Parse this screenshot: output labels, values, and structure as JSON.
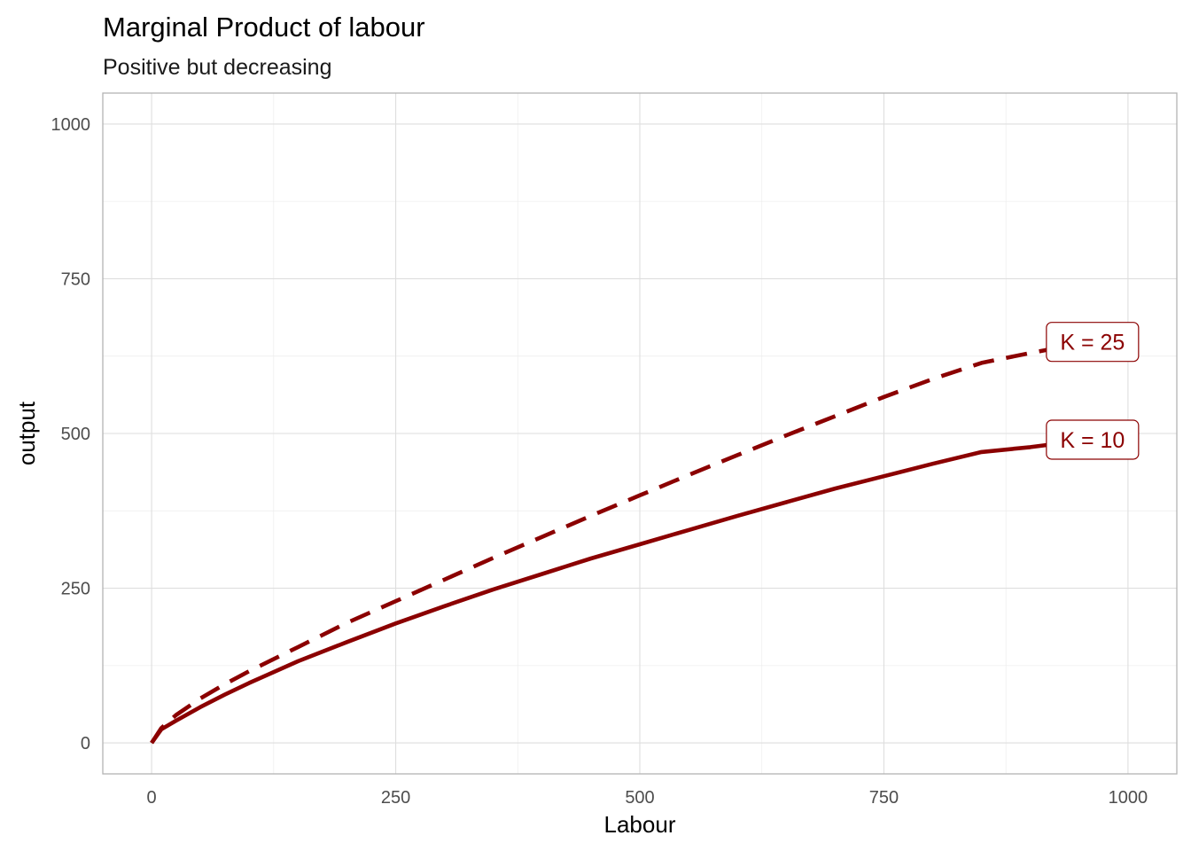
{
  "chart_data": {
    "type": "line",
    "title": "Marginal Product of labour",
    "subtitle": "Positive but decreasing",
    "xlabel": "Labour",
    "ylabel": "output",
    "xlim": [
      -50,
      1050
    ],
    "ylim": [
      -50,
      1050
    ],
    "x_ticks": [
      0,
      250,
      500,
      750,
      1000
    ],
    "y_ticks": [
      0,
      250,
      500,
      750,
      1000
    ],
    "x_minor_ticks": [
      125,
      375,
      625,
      875
    ],
    "y_minor_ticks": [
      125,
      375,
      625,
      875
    ],
    "grid": true,
    "legend": "none",
    "color": "#8b0000",
    "series": [
      {
        "label": "K = 25",
        "linestyle": "dashed",
        "x": [
          0,
          10,
          25,
          50,
          75,
          100,
          150,
          200,
          250,
          300,
          350,
          400,
          450,
          500,
          550,
          600,
          650,
          700,
          750,
          800,
          850,
          900,
          950,
          960
        ],
        "y": [
          0,
          24,
          45,
          72,
          95,
          116,
          155,
          194,
          229,
          264,
          299,
          333,
          367,
          400,
          433,
          465,
          497,
          528,
          559,
          588,
          614,
          630,
          645,
          648
        ]
      },
      {
        "label": "K = 10",
        "linestyle": "solid",
        "x": [
          0,
          10,
          25,
          50,
          75,
          100,
          150,
          200,
          250,
          300,
          350,
          400,
          450,
          500,
          550,
          600,
          650,
          700,
          750,
          800,
          850,
          900,
          950,
          960
        ],
        "y": [
          0,
          22,
          36,
          58,
          78,
          97,
          132,
          163,
          193,
          221,
          248,
          273,
          298,
          321,
          344,
          367,
          389,
          411,
          431,
          451,
          470,
          478,
          488,
          490
        ]
      }
    ]
  }
}
